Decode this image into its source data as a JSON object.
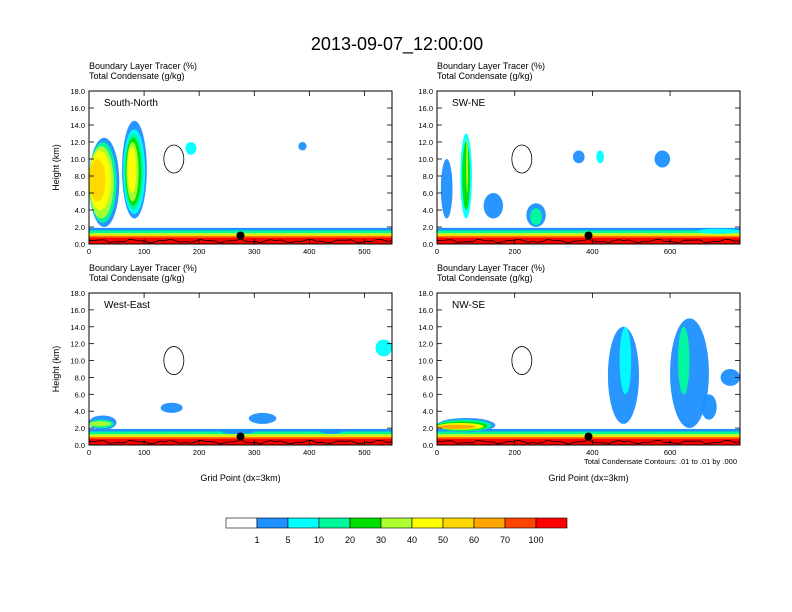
{
  "figure": {
    "title": "2013-09-07_12:00:00",
    "note": "Total Condensate Contours: .01 to .01 by .000"
  },
  "colorbar": {
    "colors": [
      "#ffffff",
      "#1e90ff",
      "#00ffff",
      "#00fa9a",
      "#00e000",
      "#adff2f",
      "#ffff00",
      "#ffd700",
      "#ffa500",
      "#ff4500",
      "#ff0000"
    ],
    "labels": [
      "1",
      "5",
      "10",
      "20",
      "30",
      "40",
      "50",
      "60",
      "70",
      "100"
    ]
  },
  "chart_data": [
    {
      "type": "heatmap",
      "panel_label": "South-North",
      "header_lines": [
        "Boundary Layer Tracer   (%)",
        "Total Condensate   (g/kg)"
      ],
      "ylabel": "Height (km)",
      "xlabel": "",
      "xlim": [
        0,
        550
      ],
      "ylim": [
        0,
        18
      ],
      "x_ticks": [
        0,
        100,
        200,
        300,
        400,
        500
      ],
      "y_ticks": [
        "0.0",
        "2.0",
        "4.0",
        "6.0",
        "8.0",
        "10.0",
        "12.0",
        "14.0",
        "16.0",
        "18.0"
      ],
      "marker_x": 275,
      "marker_height_km": 1.0
    },
    {
      "type": "heatmap",
      "panel_label": "SW-NE",
      "header_lines": [
        "Boundary Layer Tracer   (%)",
        "Total Condensate   (g/kg)"
      ],
      "ylabel": "",
      "xlabel": "",
      "xlim": [
        0,
        780
      ],
      "ylim": [
        0,
        18
      ],
      "x_ticks": [
        0,
        200,
        400,
        600
      ],
      "y_ticks": [
        "0.0",
        "2.0",
        "4.0",
        "6.0",
        "8.0",
        "10.0",
        "12.0",
        "14.0",
        "16.0",
        "18.0"
      ],
      "marker_x": 390,
      "marker_height_km": 1.0
    },
    {
      "type": "heatmap",
      "panel_label": "West-East",
      "header_lines": [
        "Boundary Layer Tracer   (%)",
        "Total Condensate   (g/kg)"
      ],
      "ylabel": "Height (km)",
      "xlabel": "Grid Point (dx=3km)",
      "xlim": [
        0,
        550
      ],
      "ylim": [
        0,
        18
      ],
      "x_ticks": [
        0,
        100,
        200,
        300,
        400,
        500
      ],
      "y_ticks": [
        "0.0",
        "2.0",
        "4.0",
        "6.0",
        "8.0",
        "10.0",
        "12.0",
        "14.0",
        "16.0",
        "18.0"
      ],
      "marker_x": 275,
      "marker_height_km": 1.0
    },
    {
      "type": "heatmap",
      "panel_label": "NW-SE",
      "header_lines": [
        "Boundary Layer Tracer   (%)",
        "Total Condensate   (g/kg)"
      ],
      "ylabel": "",
      "xlabel": "Grid Point (dx=3km)",
      "xlim": [
        0,
        780
      ],
      "ylim": [
        0,
        18
      ],
      "x_ticks": [
        0,
        200,
        400,
        600
      ],
      "y_ticks": [
        "0.0",
        "2.0",
        "4.0",
        "6.0",
        "8.0",
        "10.0",
        "12.0",
        "14.0",
        "16.0",
        "18.0"
      ],
      "marker_x": 390,
      "marker_height_km": 1.0
    }
  ]
}
